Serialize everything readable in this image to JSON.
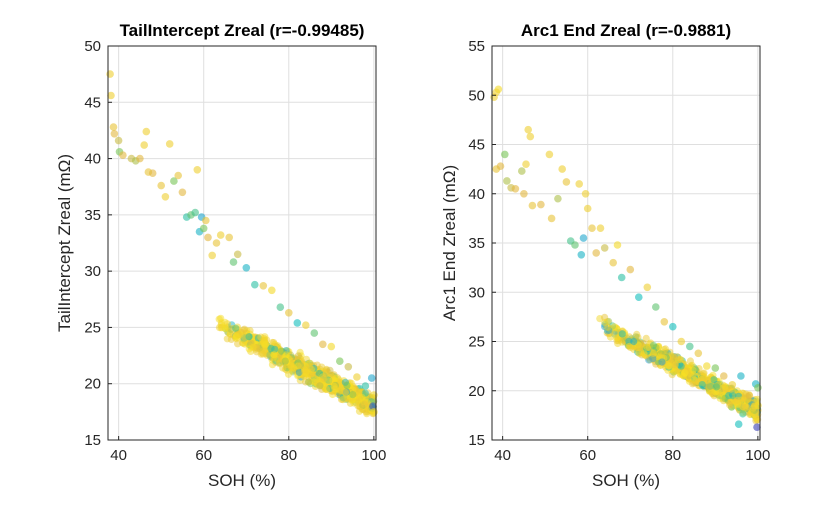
{
  "chart_data": [
    {
      "type": "scatter",
      "title": "TailIntercept Zreal (r=-0.99485)",
      "xlabel": "SOH (%)",
      "ylabel": "TailIntercept Zreal (mΩ)",
      "xlim": [
        37.5,
        100.5
      ],
      "ylim": [
        15,
        50
      ],
      "xticks": [
        40,
        60,
        80,
        100
      ],
      "yticks": [
        15,
        20,
        25,
        30,
        35,
        40,
        45,
        50
      ],
      "grid": true,
      "colormap": [
        "#3e26a8",
        "#2f8fdd",
        "#12bebd",
        "#78c556",
        "#e2b83f",
        "#f9e320"
      ],
      "trend": {
        "slope": -0.2,
        "intercept": 38.0
      },
      "points": [
        {
          "x": 38.0,
          "y": 47.5,
          "c": 0.9
        },
        {
          "x": 38.2,
          "y": 45.6,
          "c": 0.9
        },
        {
          "x": 38.8,
          "y": 42.8,
          "c": 0.85
        },
        {
          "x": 39.0,
          "y": 42.2,
          "c": 0.8
        },
        {
          "x": 40.0,
          "y": 41.6,
          "c": 0.75
        },
        {
          "x": 40.2,
          "y": 40.6,
          "c": 0.6
        },
        {
          "x": 41.0,
          "y": 40.3,
          "c": 0.8
        },
        {
          "x": 43.0,
          "y": 40.0,
          "c": 0.75
        },
        {
          "x": 44.0,
          "y": 39.8,
          "c": 0.7
        },
        {
          "x": 45.0,
          "y": 40.0,
          "c": 0.8
        },
        {
          "x": 46.0,
          "y": 41.2,
          "c": 0.9
        },
        {
          "x": 46.5,
          "y": 42.4,
          "c": 0.9
        },
        {
          "x": 47.0,
          "y": 38.8,
          "c": 0.85
        },
        {
          "x": 48.0,
          "y": 38.7,
          "c": 0.8
        },
        {
          "x": 50.0,
          "y": 37.6,
          "c": 0.85
        },
        {
          "x": 51.0,
          "y": 36.6,
          "c": 0.9
        },
        {
          "x": 52.0,
          "y": 41.3,
          "c": 0.9
        },
        {
          "x": 53.0,
          "y": 38.0,
          "c": 0.6
        },
        {
          "x": 54.0,
          "y": 38.5,
          "c": 0.85
        },
        {
          "x": 55.0,
          "y": 37.0,
          "c": 0.8
        },
        {
          "x": 56.0,
          "y": 34.8,
          "c": 0.45
        },
        {
          "x": 57.0,
          "y": 35.0,
          "c": 0.55
        },
        {
          "x": 58.0,
          "y": 35.2,
          "c": 0.5
        },
        {
          "x": 58.5,
          "y": 39.0,
          "c": 0.9
        },
        {
          "x": 59.0,
          "y": 33.5,
          "c": 0.35
        },
        {
          "x": 59.5,
          "y": 34.8,
          "c": 0.3
        },
        {
          "x": 60.0,
          "y": 33.8,
          "c": 0.6
        },
        {
          "x": 60.5,
          "y": 34.5,
          "c": 0.85
        },
        {
          "x": 61.0,
          "y": 33.0,
          "c": 0.8
        },
        {
          "x": 62.0,
          "y": 31.4,
          "c": 0.9
        },
        {
          "x": 63.0,
          "y": 32.5,
          "c": 0.85
        },
        {
          "x": 64.0,
          "y": 33.2,
          "c": 0.9
        },
        {
          "x": 66.0,
          "y": 33.0,
          "c": 0.85
        },
        {
          "x": 67.0,
          "y": 30.8,
          "c": 0.55
        },
        {
          "x": 68.0,
          "y": 31.5,
          "c": 0.75
        },
        {
          "x": 70.0,
          "y": 30.3,
          "c": 0.35
        },
        {
          "x": 72.0,
          "y": 28.8,
          "c": 0.45
        },
        {
          "x": 74.0,
          "y": 28.7,
          "c": 0.85
        },
        {
          "x": 76.0,
          "y": 28.3,
          "c": 0.95
        },
        {
          "x": 78.0,
          "y": 26.8,
          "c": 0.5
        },
        {
          "x": 80.0,
          "y": 26.3,
          "c": 0.85
        },
        {
          "x": 82.0,
          "y": 25.4,
          "c": 0.4
        },
        {
          "x": 84.0,
          "y": 25.2,
          "c": 0.9
        },
        {
          "x": 86.0,
          "y": 24.5,
          "c": 0.55
        },
        {
          "x": 88.0,
          "y": 23.5,
          "c": 0.8
        },
        {
          "x": 90.0,
          "y": 23.3,
          "c": 0.95
        },
        {
          "x": 92.0,
          "y": 22.0,
          "c": 0.6
        },
        {
          "x": 94.0,
          "y": 21.5,
          "c": 0.75
        },
        {
          "x": 96.0,
          "y": 20.6,
          "c": 0.9
        },
        {
          "x": 98.0,
          "y": 19.8,
          "c": 0.45
        },
        {
          "x": 99.5,
          "y": 20.5,
          "c": 0.3
        },
        {
          "x": 99.8,
          "y": 18.0,
          "c": 0.1
        },
        {
          "x": 100.0,
          "y": 17.5,
          "c": 0.95
        },
        {
          "x": 100.0,
          "y": 19.0,
          "c": 0.95
        }
      ]
    },
    {
      "type": "scatter",
      "title": "Arc1 End Zreal (r=-0.9881)",
      "xlabel": "SOH (%)",
      "ylabel": "Arc1 End Zreal (mΩ)",
      "xlim": [
        37.5,
        100.5
      ],
      "ylim": [
        15,
        55
      ],
      "xticks": [
        40,
        60,
        80,
        100
      ],
      "yticks": [
        15,
        20,
        25,
        30,
        35,
        40,
        45,
        50,
        55
      ],
      "grid": true,
      "colormap": [
        "#3e26a8",
        "#2f8fdd",
        "#12bebd",
        "#78c556",
        "#e2b83f",
        "#f9e320"
      ],
      "trend": {
        "slope": -0.235,
        "intercept": 41.5
      },
      "points": [
        {
          "x": 38.0,
          "y": 49.8,
          "c": 0.9
        },
        {
          "x": 38.5,
          "y": 50.3,
          "c": 0.9
        },
        {
          "x": 39.0,
          "y": 50.6,
          "c": 0.95
        },
        {
          "x": 38.5,
          "y": 42.5,
          "c": 0.85
        },
        {
          "x": 39.5,
          "y": 42.8,
          "c": 0.8
        },
        {
          "x": 40.5,
          "y": 44.0,
          "c": 0.6
        },
        {
          "x": 41.0,
          "y": 41.3,
          "c": 0.7
        },
        {
          "x": 42.0,
          "y": 40.6,
          "c": 0.75
        },
        {
          "x": 43.0,
          "y": 40.5,
          "c": 0.8
        },
        {
          "x": 44.5,
          "y": 42.3,
          "c": 0.7
        },
        {
          "x": 45.0,
          "y": 40.0,
          "c": 0.8
        },
        {
          "x": 45.5,
          "y": 43.0,
          "c": 0.9
        },
        {
          "x": 46.0,
          "y": 46.5,
          "c": 0.9
        },
        {
          "x": 46.5,
          "y": 45.8,
          "c": 0.9
        },
        {
          "x": 47.0,
          "y": 38.8,
          "c": 0.85
        },
        {
          "x": 49.0,
          "y": 38.9,
          "c": 0.8
        },
        {
          "x": 51.0,
          "y": 44.0,
          "c": 0.9
        },
        {
          "x": 51.5,
          "y": 37.5,
          "c": 0.85
        },
        {
          "x": 53.0,
          "y": 39.5,
          "c": 0.7
        },
        {
          "x": 54.0,
          "y": 42.5,
          "c": 0.9
        },
        {
          "x": 55.0,
          "y": 41.2,
          "c": 0.85
        },
        {
          "x": 56.0,
          "y": 35.2,
          "c": 0.5
        },
        {
          "x": 57.0,
          "y": 34.8,
          "c": 0.55
        },
        {
          "x": 58.0,
          "y": 41.0,
          "c": 0.9
        },
        {
          "x": 58.5,
          "y": 33.8,
          "c": 0.35
        },
        {
          "x": 59.0,
          "y": 35.5,
          "c": 0.3
        },
        {
          "x": 59.5,
          "y": 40.0,
          "c": 0.9
        },
        {
          "x": 60.0,
          "y": 38.5,
          "c": 0.9
        },
        {
          "x": 61.0,
          "y": 36.5,
          "c": 0.85
        },
        {
          "x": 62.0,
          "y": 34.0,
          "c": 0.8
        },
        {
          "x": 63.0,
          "y": 36.5,
          "c": 0.9
        },
        {
          "x": 64.0,
          "y": 34.5,
          "c": 0.75
        },
        {
          "x": 66.0,
          "y": 33.0,
          "c": 0.85
        },
        {
          "x": 67.0,
          "y": 34.8,
          "c": 0.95
        },
        {
          "x": 68.0,
          "y": 31.5,
          "c": 0.45
        },
        {
          "x": 70.0,
          "y": 32.3,
          "c": 0.8
        },
        {
          "x": 72.0,
          "y": 29.5,
          "c": 0.4
        },
        {
          "x": 74.0,
          "y": 30.5,
          "c": 0.9
        },
        {
          "x": 76.0,
          "y": 28.5,
          "c": 0.55
        },
        {
          "x": 78.0,
          "y": 27.0,
          "c": 0.85
        },
        {
          "x": 80.0,
          "y": 26.5,
          "c": 0.4
        },
        {
          "x": 82.0,
          "y": 25.0,
          "c": 0.9
        },
        {
          "x": 84.0,
          "y": 24.5,
          "c": 0.5
        },
        {
          "x": 86.0,
          "y": 23.8,
          "c": 0.85
        },
        {
          "x": 88.0,
          "y": 22.5,
          "c": 0.95
        },
        {
          "x": 90.0,
          "y": 22.3,
          "c": 0.6
        },
        {
          "x": 92.0,
          "y": 21.5,
          "c": 0.8
        },
        {
          "x": 94.0,
          "y": 20.6,
          "c": 0.9
        },
        {
          "x": 95.5,
          "y": 16.6,
          "c": 0.4
        },
        {
          "x": 96.0,
          "y": 21.5,
          "c": 0.35
        },
        {
          "x": 98.0,
          "y": 19.5,
          "c": 0.8
        },
        {
          "x": 99.5,
          "y": 20.7,
          "c": 0.35
        },
        {
          "x": 99.8,
          "y": 16.3,
          "c": 0.05
        },
        {
          "x": 100.0,
          "y": 18.5,
          "c": 0.95
        },
        {
          "x": 100.0,
          "y": 20.3,
          "c": 0.6
        }
      ]
    }
  ]
}
